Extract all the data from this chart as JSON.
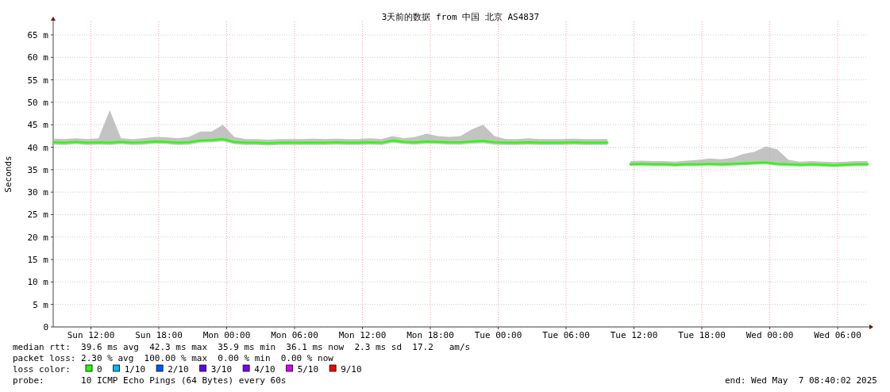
{
  "chart_data": {
    "type": "line",
    "title": "3天前的数据 from 中国 北京 AS4837",
    "ylabel": "Seconds",
    "legend_title": "loss color:",
    "legend": "bottom",
    "grid": true,
    "marker": "none",
    "line_style": "solid",
    "xlim": [
      "2025-05-04T08:40",
      "2025-05-07T08:40"
    ],
    "xticks": [
      {
        "value": "2025-05-04T12:00",
        "label": "Sun 12:00"
      },
      {
        "value": "2025-05-04T18:00",
        "label": "Sun 18:00"
      },
      {
        "value": "2025-05-05T00:00",
        "label": "Mon 00:00"
      },
      {
        "value": "2025-05-05T06:00",
        "label": "Mon 06:00"
      },
      {
        "value": "2025-05-05T12:00",
        "label": "Mon 12:00"
      },
      {
        "value": "2025-05-05T18:00",
        "label": "Mon 18:00"
      },
      {
        "value": "2025-05-06T00:00",
        "label": "Tue 00:00"
      },
      {
        "value": "2025-05-06T06:00",
        "label": "Tue 06:00"
      },
      {
        "value": "2025-05-06T12:00",
        "label": "Tue 12:00"
      },
      {
        "value": "2025-05-06T18:00",
        "label": "Tue 18:00"
      },
      {
        "value": "2025-05-07T00:00",
        "label": "Wed 00:00"
      },
      {
        "value": "2025-05-07T06:00",
        "label": "Wed 06:00"
      }
    ],
    "ylim": [
      0,
      68
    ],
    "yticks": [
      0,
      {
        "value": 5,
        "label": "5 m"
      },
      {
        "value": 10,
        "label": "10 m"
      },
      {
        "value": 15,
        "label": "15 m"
      },
      {
        "value": 20,
        "label": "20 m"
      },
      {
        "value": 25,
        "label": "25 m"
      },
      {
        "value": 30,
        "label": "30 m"
      },
      {
        "value": 35,
        "label": "35 m"
      },
      {
        "value": 40,
        "label": "40 m"
      },
      {
        "value": 45,
        "label": "45 m"
      },
      {
        "value": 50,
        "label": "50 m"
      },
      {
        "value": 55,
        "label": "55 m"
      },
      {
        "value": 60,
        "label": "60 m"
      },
      {
        "value": 65,
        "label": "65 m"
      }
    ],
    "x": [
      "2025-05-04T08:40",
      "2025-05-04T09:40",
      "2025-05-04T10:40",
      "2025-05-04T11:40",
      "2025-05-04T12:40",
      "2025-05-04T13:40",
      "2025-05-04T14:40",
      "2025-05-04T15:40",
      "2025-05-04T16:40",
      "2025-05-04T17:40",
      "2025-05-04T18:40",
      "2025-05-04T19:40",
      "2025-05-04T20:40",
      "2025-05-04T21:40",
      "2025-05-04T22:40",
      "2025-05-04T23:40",
      "2025-05-05T00:40",
      "2025-05-05T01:40",
      "2025-05-05T02:40",
      "2025-05-05T03:40",
      "2025-05-05T04:40",
      "2025-05-05T05:40",
      "2025-05-05T06:40",
      "2025-05-05T07:40",
      "2025-05-05T08:40",
      "2025-05-05T09:40",
      "2025-05-05T10:40",
      "2025-05-05T11:40",
      "2025-05-05T12:40",
      "2025-05-05T13:40",
      "2025-05-05T14:40",
      "2025-05-05T15:40",
      "2025-05-05T16:40",
      "2025-05-05T17:40",
      "2025-05-05T18:40",
      "2025-05-05T19:40",
      "2025-05-05T20:40",
      "2025-05-05T21:40",
      "2025-05-05T22:40",
      "2025-05-05T23:40",
      "2025-05-06T00:40",
      "2025-05-06T01:40",
      "2025-05-06T02:40",
      "2025-05-06T03:40",
      "2025-05-06T04:40",
      "2025-05-06T05:40",
      "2025-05-06T06:40",
      "2025-05-06T07:40",
      "2025-05-06T08:40",
      "2025-05-06T09:40",
      "2025-05-06T10:40",
      "2025-05-06T11:40",
      "2025-05-06T12:40",
      "2025-05-06T13:40",
      "2025-05-06T14:40",
      "2025-05-06T15:40",
      "2025-05-06T16:40",
      "2025-05-06T17:40",
      "2025-05-06T18:40",
      "2025-05-06T19:40",
      "2025-05-06T20:40",
      "2025-05-06T21:40",
      "2025-05-06T22:40",
      "2025-05-06T23:40",
      "2025-05-07T00:40",
      "2025-05-07T01:40",
      "2025-05-07T02:40",
      "2025-05-07T03:40",
      "2025-05-07T04:40",
      "2025-05-07T05:40",
      "2025-05-07T06:40",
      "2025-05-07T07:40",
      "2025-05-07T08:40"
    ],
    "series": [
      {
        "name": "0",
        "color": "#26ff00",
        "values": [
          41.1,
          41.0,
          41.2,
          41.0,
          41.1,
          41.0,
          41.2,
          41.0,
          41.1,
          41.3,
          41.2,
          41.0,
          41.1,
          41.5,
          41.6,
          41.8,
          41.2,
          41.0,
          41.0,
          40.9,
          41.0,
          41.0,
          41.0,
          41.0,
          41.0,
          41.1,
          41.0,
          41.0,
          41.1,
          41.0,
          41.5,
          41.2,
          41.1,
          41.3,
          41.2,
          41.1,
          41.1,
          41.3,
          41.4,
          41.1,
          41.0,
          41.0,
          41.1,
          41.0,
          41.0,
          41.0,
          41.1,
          41.0,
          41.0,
          41.0,
          null,
          36.2,
          36.3,
          36.2,
          36.2,
          36.1,
          36.2,
          36.2,
          36.3,
          36.2,
          36.3,
          36.4,
          36.5,
          36.6,
          36.3,
          36.2,
          36.1,
          36.2,
          36.1,
          36.0,
          36.1,
          36.2,
          36.2
        ],
        "upper": [
          41.9,
          41.8,
          42.0,
          41.8,
          42.0,
          48.2,
          42.0,
          41.8,
          42.0,
          42.3,
          42.2,
          42.0,
          42.3,
          43.5,
          43.5,
          45.0,
          42.3,
          41.8,
          41.8,
          41.7,
          41.8,
          41.8,
          41.8,
          41.9,
          41.8,
          41.9,
          41.8,
          41.8,
          42.0,
          41.8,
          42.5,
          42.0,
          42.3,
          43.0,
          42.5,
          42.3,
          42.5,
          44.0,
          45.0,
          42.5,
          41.8,
          41.8,
          42.0,
          41.8,
          41.8,
          41.8,
          41.9,
          41.8,
          41.8,
          41.8,
          null,
          36.9,
          37.0,
          36.9,
          36.9,
          36.8,
          37.0,
          37.2,
          37.5,
          37.3,
          37.6,
          38.5,
          39.0,
          40.2,
          39.5,
          37.2,
          36.8,
          36.9,
          36.8,
          36.7,
          36.8,
          36.9,
          36.9
        ],
        "lower": [
          40.6,
          40.5,
          40.7,
          40.5,
          40.6,
          40.5,
          40.7,
          40.5,
          40.6,
          40.8,
          40.7,
          40.5,
          40.6,
          41.0,
          41.1,
          41.3,
          40.7,
          40.5,
          40.5,
          40.4,
          40.5,
          40.5,
          40.5,
          40.5,
          40.5,
          40.6,
          40.5,
          40.5,
          40.6,
          40.5,
          41.0,
          40.7,
          40.6,
          40.8,
          40.7,
          40.6,
          40.6,
          40.8,
          40.9,
          40.6,
          40.5,
          40.5,
          40.6,
          40.5,
          40.5,
          40.5,
          40.6,
          40.5,
          40.5,
          40.5,
          null,
          35.8,
          35.9,
          35.8,
          35.8,
          35.7,
          35.8,
          35.8,
          35.9,
          35.8,
          35.9,
          36.0,
          36.1,
          36.2,
          35.9,
          35.8,
          35.7,
          35.8,
          35.7,
          35.6,
          35.7,
          35.8,
          35.8
        ]
      },
      {
        "name": "1/10",
        "color": "#00b8ff",
        "values": [
          null,
          null,
          null,
          null,
          null,
          null,
          null,
          null,
          null,
          null,
          null,
          null,
          null,
          null,
          null,
          null,
          null,
          null,
          null,
          null,
          null,
          null,
          null,
          null,
          null,
          null,
          null,
          null,
          null,
          null,
          null,
          null,
          null,
          null,
          null,
          null,
          null,
          null,
          null,
          null,
          null,
          null,
          null,
          null,
          null,
          null,
          null,
          null,
          null,
          null,
          null,
          null,
          null,
          null,
          null,
          null,
          null,
          null,
          null,
          null,
          null,
          null,
          null,
          null,
          null,
          null,
          null,
          null,
          null,
          null,
          null,
          null,
          null
        ]
      },
      {
        "name": "2/10",
        "color": "#0059ff",
        "values": [
          null,
          null,
          null,
          null,
          null,
          null,
          null,
          null,
          null,
          null,
          null,
          null,
          null,
          null,
          null,
          null,
          null,
          null,
          null,
          null,
          null,
          null,
          null,
          null,
          null,
          null,
          null,
          null,
          null,
          null,
          null,
          null,
          null,
          null,
          null,
          null,
          null,
          null,
          null,
          null,
          null,
          null,
          null,
          null,
          null,
          null,
          null,
          null,
          null,
          null,
          null,
          null,
          null,
          null,
          null,
          null,
          null,
          null,
          null,
          null,
          null,
          null,
          null,
          null,
          null,
          null,
          null,
          null,
          null,
          null,
          null,
          null,
          null
        ]
      },
      {
        "name": "3/10",
        "color": "#5e00ff",
        "values": [
          null,
          null,
          null,
          null,
          null,
          null,
          null,
          null,
          null,
          null,
          null,
          null,
          null,
          null,
          null,
          null,
          null,
          null,
          null,
          null,
          null,
          null,
          null,
          null,
          null,
          null,
          null,
          null,
          null,
          null,
          null,
          null,
          null,
          null,
          null,
          null,
          null,
          null,
          null,
          null,
          null,
          null,
          null,
          null,
          null,
          null,
          null,
          null,
          null,
          null,
          null,
          null,
          null,
          null,
          null,
          null,
          null,
          null,
          null,
          null,
          null,
          null,
          null,
          null,
          null,
          null,
          null,
          null,
          null,
          null,
          null,
          null,
          null
        ]
      },
      {
        "name": "4/10",
        "color": "#7e00ff",
        "values": [
          null,
          null,
          null,
          null,
          null,
          null,
          null,
          null,
          null,
          null,
          null,
          null,
          null,
          null,
          null,
          null,
          null,
          null,
          null,
          null,
          null,
          null,
          null,
          null,
          null,
          null,
          null,
          null,
          null,
          null,
          null,
          null,
          null,
          null,
          null,
          null,
          null,
          null,
          null,
          null,
          null,
          null,
          null,
          null,
          null,
          null,
          null,
          null,
          null,
          null,
          null,
          null,
          null,
          null,
          null,
          null,
          null,
          null,
          null,
          null,
          null,
          null,
          null,
          null,
          null,
          null,
          null,
          null,
          null,
          null,
          null,
          null,
          null
        ]
      },
      {
        "name": "5/10",
        "color": "#dd00ff",
        "values": [
          null,
          null,
          null,
          null,
          null,
          null,
          null,
          null,
          null,
          null,
          null,
          null,
          null,
          null,
          null,
          null,
          null,
          null,
          null,
          null,
          null,
          null,
          null,
          null,
          null,
          null,
          null,
          null,
          null,
          null,
          null,
          null,
          null,
          null,
          null,
          null,
          null,
          null,
          null,
          null,
          null,
          null,
          null,
          null,
          null,
          null,
          null,
          null,
          null,
          null,
          null,
          null,
          null,
          null,
          null,
          null,
          null,
          null,
          null,
          null,
          null,
          null,
          null,
          null,
          null,
          null,
          null,
          null,
          null,
          null,
          null,
          null,
          null
        ]
      },
      {
        "name": "9/10",
        "color": "#ff0000",
        "values": [
          null,
          null,
          null,
          null,
          null,
          null,
          null,
          null,
          null,
          null,
          null,
          null,
          null,
          null,
          null,
          null,
          null,
          null,
          null,
          null,
          null,
          null,
          null,
          null,
          null,
          null,
          null,
          null,
          null,
          null,
          null,
          null,
          null,
          null,
          null,
          null,
          null,
          null,
          null,
          null,
          null,
          null,
          null,
          null,
          null,
          null,
          null,
          null,
          null,
          null,
          null,
          null,
          null,
          null,
          null,
          null,
          null,
          null,
          null,
          null,
          null,
          null,
          null,
          null,
          null,
          null,
          null,
          null,
          null,
          null,
          null,
          null,
          null
        ]
      }
    ],
    "annotations": [
      "median rtt:  39.6 ms avg  42.3 ms max  35.9 ms min  36.1 ms now  2.3 ms sd  17.2   am/s",
      "packet loss: 2.30 % avg  100.00 % max  0.00 % min  0.00 % now",
      "probe:       10 ICMP Echo Pings (64 Bytes) every 60s",
      "end: Wed May  7 08:40:02 2025"
    ]
  }
}
